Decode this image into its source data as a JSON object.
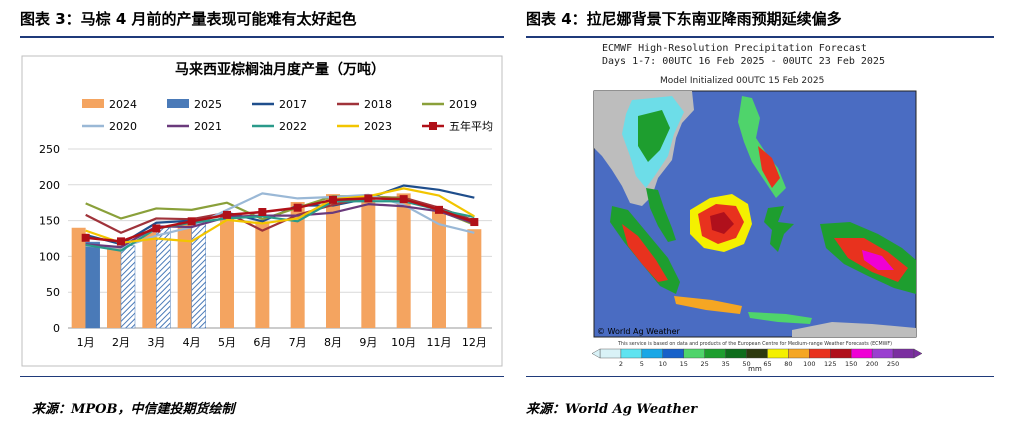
{
  "left_figure": {
    "title": "图表 3：马棕 4 月前的产量表现可能难有太好起色",
    "source": "来源：MPOB，中信建投期货绘制"
  },
  "right_figure": {
    "title": "图表 4：拉尼娜背景下东南亚降雨预期延续偏多",
    "source": "来源：World Ag Weather",
    "header_line1": "ECMWF High-Resolution Precipitation Forecast",
    "header_line2": "Days 1-7: 00UTC 16 Feb 2025 - 00UTC 23 Feb 2025",
    "header_line3": "Model Initialized 00UTC 15 Feb 2025",
    "watermark": "© World Ag Weather",
    "footnote": "This service is based on data and products of the European Centre for Medium-range Weather Forecasts (ECMWF)",
    "colorbar_unit": "mm",
    "colorbar_ticks": [
      "2",
      "5",
      "10",
      "15",
      "25",
      "35",
      "50",
      "65",
      "80",
      "100",
      "125",
      "150",
      "200",
      "250"
    ],
    "colorbar_colors": [
      "#d9f2f7",
      "#5fe3f0",
      "#1aa7e6",
      "#1761c9",
      "#4fd46b",
      "#1e9e2f",
      "#0e6d1c",
      "#2d3a0f",
      "#f4f000",
      "#f5a623",
      "#e8321e",
      "#b0101c",
      "#ef00d5",
      "#9a3fd0",
      "#7b2fa0"
    ]
  },
  "chart_data": {
    "type": "bar+line",
    "title": "马来西亚棕榈油月度产量（万吨）",
    "categories": [
      "1月",
      "2月",
      "3月",
      "4月",
      "5月",
      "6月",
      "7月",
      "8月",
      "9月",
      "10月",
      "11月",
      "12月"
    ],
    "ylim": [
      0,
      250
    ],
    "yticks": [
      0,
      50,
      100,
      150,
      200,
      250
    ],
    "grid": true,
    "legend_position": "top",
    "bar_series": [
      {
        "name": "2024",
        "color": "#f4a460",
        "values": [
          140,
          115,
          133,
          150,
          160,
          149,
          176,
          187,
          183,
          188,
          165,
          138
        ]
      },
      {
        "name": "2025",
        "color": "#4a7ab8",
        "values": [
          120,
          115,
          140,
          150,
          null,
          null,
          null,
          null,
          null,
          null,
          null,
          null
        ]
      }
    ],
    "line_series": [
      {
        "name": "2017",
        "color": "#1f4e8c",
        "values": [
          130,
          117,
          147,
          150,
          161,
          149,
          171,
          171,
          181,
          199,
          193,
          182
        ]
      },
      {
        "name": "2018",
        "color": "#a0333a",
        "values": [
          158,
          133,
          153,
          152,
          161,
          136,
          158,
          172,
          183,
          182,
          168,
          150
        ]
      },
      {
        "name": "2019",
        "color": "#8aa03a",
        "values": [
          174,
          153,
          167,
          165,
          175,
          152,
          168,
          184,
          184,
          181,
          164,
          144
        ]
      },
      {
        "name": "2020",
        "color": "#9ab8d6",
        "values": [
          115,
          112,
          129,
          141,
          165,
          188,
          181,
          183,
          186,
          172,
          145,
          133
        ]
      },
      {
        "name": "2021",
        "color": "#6a3a7c",
        "values": [
          117,
          113,
          142,
          141,
          155,
          157,
          157,
          161,
          173,
          170,
          163,
          146
        ]
      },
      {
        "name": "2022",
        "color": "#2a9a8a",
        "values": [
          116,
          108,
          139,
          147,
          153,
          156,
          149,
          177,
          177,
          177,
          165,
          155
        ]
      },
      {
        "name": "2023",
        "color": "#f2c500",
        "values": [
          136,
          119,
          125,
          121,
          151,
          146,
          153,
          180,
          184,
          195,
          185,
          156
        ]
      },
      {
        "name": "五年平均",
        "color": "#b01018",
        "marker": "square",
        "values": [
          126,
          121,
          139,
          149,
          158,
          162,
          168,
          179,
          181,
          180,
          165,
          148
        ]
      }
    ]
  }
}
